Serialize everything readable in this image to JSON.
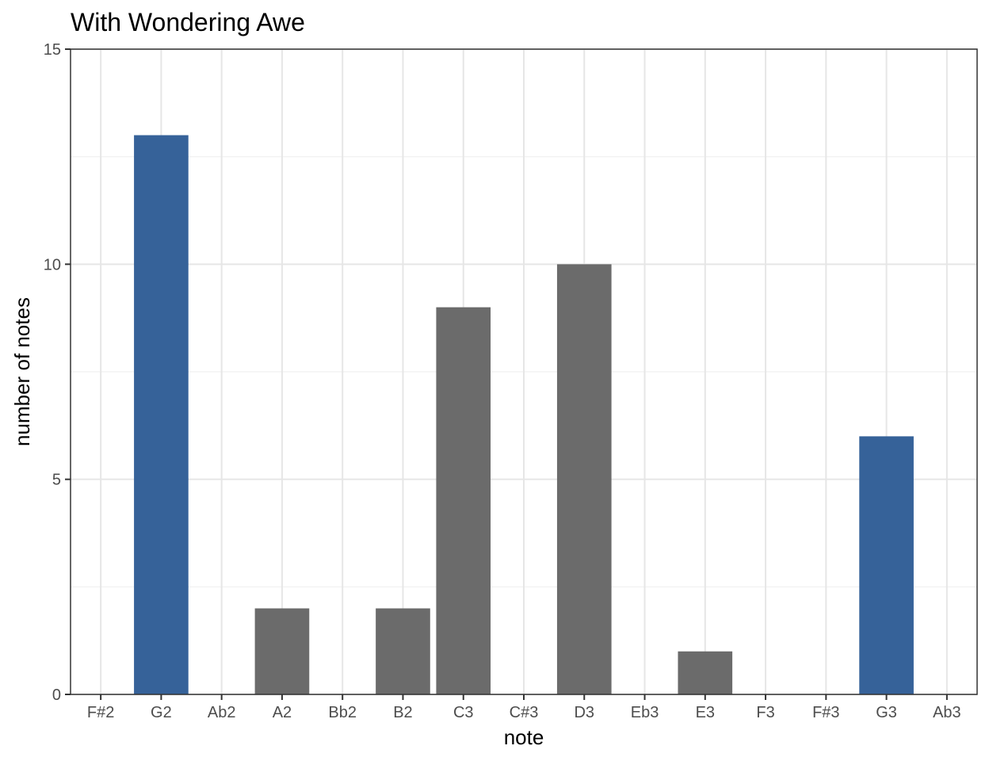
{
  "chart_data": {
    "type": "bar",
    "title": "With Wondering Awe",
    "xlabel": "note",
    "ylabel": "number of notes",
    "categories": [
      "F#2",
      "G2",
      "Ab2",
      "A2",
      "Bb2",
      "B2",
      "C3",
      "C#3",
      "D3",
      "Eb3",
      "E3",
      "F3",
      "F#3",
      "G3",
      "Ab3"
    ],
    "values": [
      0,
      13,
      0,
      2,
      0,
      2,
      9,
      0,
      10,
      0,
      1,
      0,
      0,
      6,
      0
    ],
    "highlight": [
      false,
      true,
      false,
      false,
      false,
      false,
      false,
      false,
      false,
      false,
      false,
      false,
      false,
      true,
      false
    ],
    "ylim": [
      0,
      15
    ],
    "yticks": [
      "0",
      "5",
      "10",
      "15"
    ],
    "grid": true,
    "colors": {
      "highlight": "#366299",
      "default": "#6b6b6b"
    }
  }
}
